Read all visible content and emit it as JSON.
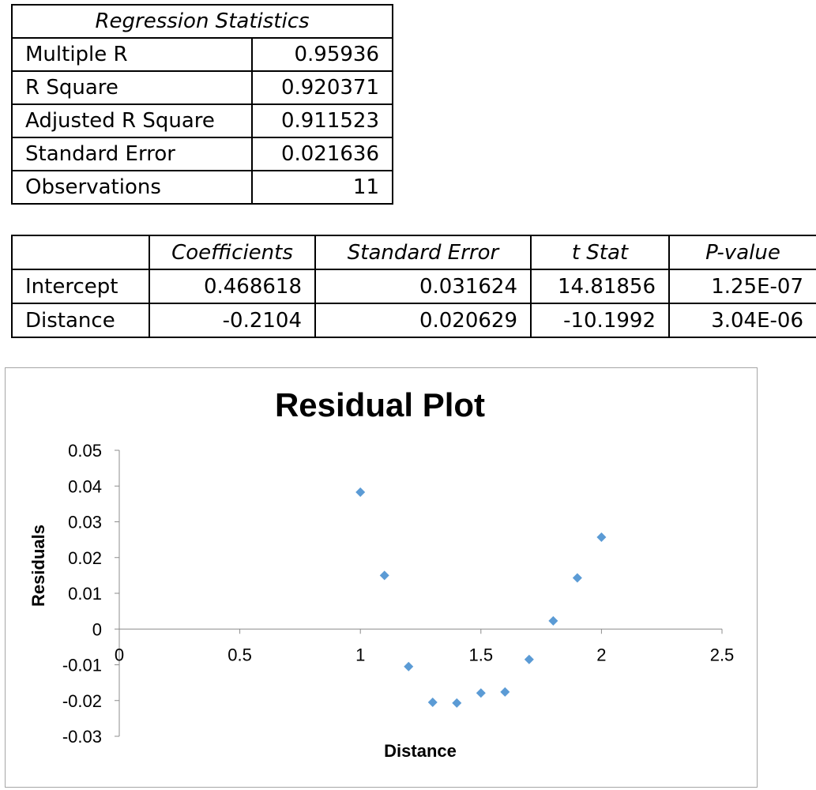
{
  "regression_statistics": {
    "header": "Regression Statistics",
    "rows": [
      {
        "label": "Multiple R",
        "value": "0.95936"
      },
      {
        "label": "R Square",
        "value": "0.920371"
      },
      {
        "label": "Adjusted R Square",
        "value": "0.911523"
      },
      {
        "label": "Standard Error",
        "value": "0.021636"
      },
      {
        "label": "Observations",
        "value": "11"
      }
    ]
  },
  "coefficients_table": {
    "headers": [
      "",
      "Coefficients",
      "Standard Error",
      "t Stat",
      "P-value"
    ],
    "rows": [
      [
        "Intercept",
        "0.468618",
        "0.031624",
        "14.81856",
        "1.25E-07"
      ],
      [
        "Distance",
        "-0.2104",
        "0.020629",
        "-10.1992",
        "3.04E-06"
      ]
    ]
  },
  "chart_data": {
    "type": "scatter",
    "title": "Residual Plot",
    "xlabel": "Distance",
    "ylabel": "Residuals",
    "xlim": [
      0,
      2.5
    ],
    "ylim": [
      -0.03,
      0.05
    ],
    "x_ticks": [
      "0",
      "0.5",
      "1",
      "1.5",
      "2",
      "2.5"
    ],
    "y_ticks": [
      "0.05",
      "0.04",
      "0.03",
      "0.02",
      "0.01",
      "0",
      "-0.01",
      "-0.02",
      "-0.03"
    ],
    "grid": false,
    "legend": false,
    "marker": "diamond",
    "marker_color": "#5b9bd5",
    "points": [
      {
        "x": 1.0,
        "y": 0.0383
      },
      {
        "x": 1.1,
        "y": 0.015
      },
      {
        "x": 1.2,
        "y": -0.0105
      },
      {
        "x": 1.3,
        "y": -0.0205
      },
      {
        "x": 1.4,
        "y": -0.0207
      },
      {
        "x": 1.5,
        "y": -0.0179
      },
      {
        "x": 1.6,
        "y": -0.0176
      },
      {
        "x": 1.7,
        "y": -0.0085
      },
      {
        "x": 1.8,
        "y": 0.0023
      },
      {
        "x": 1.9,
        "y": 0.0143
      },
      {
        "x": 2.0,
        "y": 0.0257
      }
    ]
  }
}
